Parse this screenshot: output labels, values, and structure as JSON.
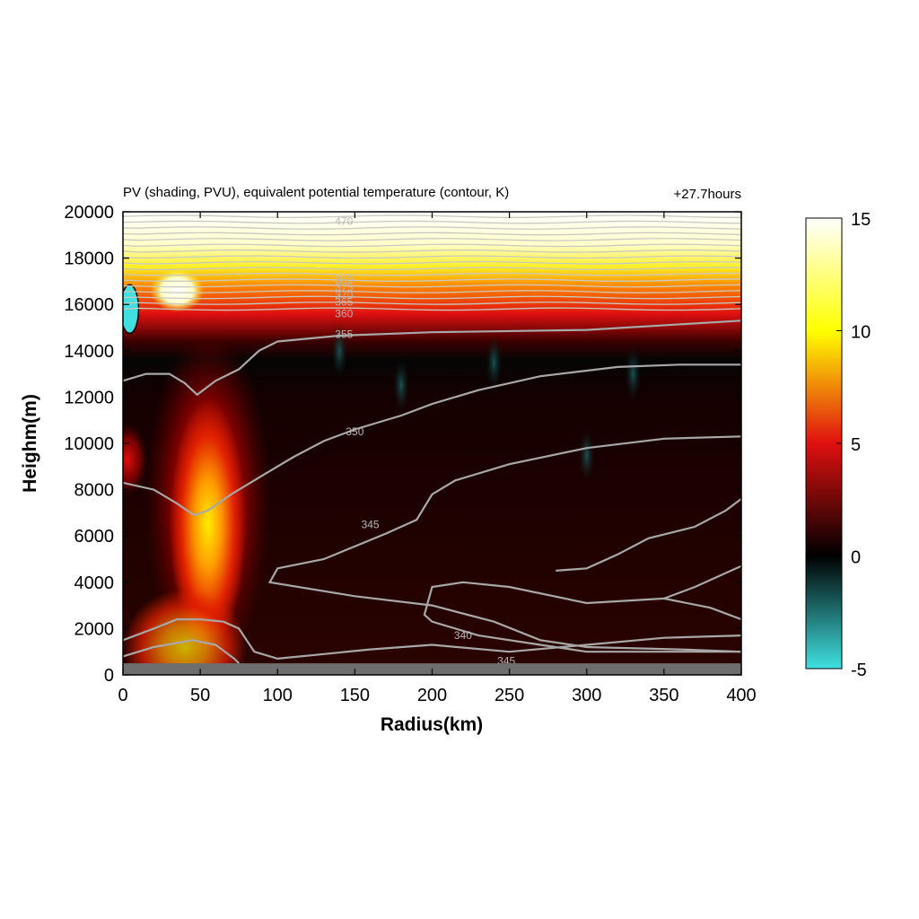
{
  "chart_data": {
    "type": "heatmap",
    "title": "PV (shading, PVU), equivalent potential temperature (contour, K)",
    "time_label": "+27.7hours",
    "xlabel": "Radius(km)",
    "ylabel": "Heighm(m)",
    "xlim": [
      0,
      400
    ],
    "ylim": [
      0,
      20000
    ],
    "x_ticks": [
      0,
      50,
      100,
      150,
      200,
      250,
      300,
      350,
      400
    ],
    "y_ticks": [
      0,
      2000,
      4000,
      6000,
      8000,
      10000,
      12000,
      14000,
      16000,
      18000,
      20000
    ],
    "colorbar": {
      "min": -5,
      "max": 15,
      "ticks": [
        -5,
        0,
        5,
        10,
        15
      ],
      "colors": [
        "#40e0e0",
        "#000000",
        "#e01010",
        "#ffff00",
        "#ffffff"
      ]
    },
    "shading_features": [
      {
        "kind": "positive-column",
        "x_center": 55,
        "width": 45,
        "y_bottom": 0,
        "y_top": 15000,
        "peak_height": 6500,
        "peak_pv": 10
      },
      {
        "kind": "positive-band",
        "x_from": 0,
        "x_to": 400,
        "y_bottom": 15500,
        "y_top": 18000,
        "peak_pv": 12
      },
      {
        "kind": "stratosphere",
        "x_from": 0,
        "x_to": 400,
        "y_bottom": 18000,
        "y_top": 20000,
        "pv": 15
      },
      {
        "kind": "negative-patch",
        "x_center": 2,
        "y_center": 15800,
        "pv": -5
      },
      {
        "kind": "near-surface-positive",
        "x_from": 0,
        "x_to": 80,
        "y_bottom": 0,
        "y_top": 2500,
        "peak_pv": 8
      },
      {
        "kind": "below-ground",
        "x_from": 0,
        "x_to": 400,
        "y_bottom": 0,
        "y_top": 500
      }
    ],
    "contour_labels": [
      {
        "text": "355",
        "x": 143,
        "y": 14700
      },
      {
        "text": "350",
        "x": 150,
        "y": 10500
      },
      {
        "text": "345",
        "x": 160,
        "y": 6500
      },
      {
        "text": "340",
        "x": 220,
        "y": 1700
      },
      {
        "text": "345",
        "x": 248,
        "y": 600
      },
      {
        "text": "360",
        "x": 143,
        "y": 15600
      },
      {
        "text": "365",
        "x": 143,
        "y": 16100
      },
      {
        "text": "370",
        "x": 143,
        "y": 16400
      },
      {
        "text": "375",
        "x": 143,
        "y": 16750
      },
      {
        "text": "380",
        "x": 143,
        "y": 17050
      },
      {
        "text": "470",
        "x": 143,
        "y": 19600
      }
    ],
    "contours": [
      {
        "level": 355,
        "points": [
          [
            0,
            12700
          ],
          [
            15,
            13000
          ],
          [
            30,
            13000
          ],
          [
            40,
            12600
          ],
          [
            48,
            12100
          ],
          [
            60,
            12700
          ],
          [
            75,
            13200
          ],
          [
            88,
            14000
          ],
          [
            100,
            14400
          ],
          [
            140,
            14650
          ],
          [
            200,
            14800
          ],
          [
            300,
            14900
          ],
          [
            400,
            15300
          ]
        ]
      },
      {
        "level": 350,
        "points": [
          [
            0,
            8300
          ],
          [
            20,
            8000
          ],
          [
            35,
            7400
          ],
          [
            46,
            6900
          ],
          [
            55,
            7100
          ],
          [
            70,
            7800
          ],
          [
            90,
            8600
          ],
          [
            110,
            9400
          ],
          [
            130,
            10100
          ],
          [
            150,
            10600
          ],
          [
            180,
            11200
          ],
          [
            200,
            11700
          ],
          [
            230,
            12300
          ],
          [
            270,
            12900
          ],
          [
            320,
            13300
          ],
          [
            360,
            13400
          ],
          [
            400,
            13400
          ]
        ]
      },
      {
        "level": 345,
        "points": [
          [
            0,
            1500
          ],
          [
            20,
            2000
          ],
          [
            35,
            2400
          ],
          [
            50,
            2400
          ],
          [
            65,
            2300
          ],
          [
            75,
            2000
          ],
          [
            85,
            1000
          ],
          [
            100,
            700
          ],
          [
            130,
            900
          ],
          [
            160,
            1100
          ],
          [
            200,
            1300
          ],
          [
            250,
            1000
          ],
          [
            300,
            1300
          ],
          [
            350,
            1600
          ],
          [
            400,
            1700
          ]
        ]
      },
      {
        "level": 345,
        "points": [
          [
            0,
            800
          ],
          [
            20,
            1200
          ],
          [
            45,
            1500
          ],
          [
            60,
            1300
          ],
          [
            72,
            700
          ],
          [
            75,
            500
          ]
        ]
      },
      {
        "level": 345,
        "points": [
          [
            400,
            10300
          ],
          [
            350,
            10200
          ],
          [
            300,
            9800
          ],
          [
            250,
            9100
          ],
          [
            215,
            8400
          ],
          [
            200,
            7800
          ],
          [
            190,
            6700
          ],
          [
            170,
            6100
          ],
          [
            130,
            5000
          ],
          [
            100,
            4600
          ],
          [
            95,
            4000
          ],
          [
            150,
            3400
          ],
          [
            200,
            3000
          ],
          [
            240,
            2300
          ],
          [
            270,
            1500
          ],
          [
            300,
            1200
          ],
          [
            360,
            1100
          ],
          [
            400,
            1000
          ]
        ]
      },
      {
        "level": 340,
        "points": [
          [
            400,
            2400
          ],
          [
            380,
            2900
          ],
          [
            350,
            3300
          ],
          [
            300,
            3100
          ],
          [
            250,
            3800
          ],
          [
            220,
            4000
          ],
          [
            200,
            3800
          ],
          [
            195,
            2600
          ],
          [
            200,
            2300
          ],
          [
            230,
            1700
          ],
          [
            270,
            1300
          ],
          [
            300,
            1000
          ],
          [
            400,
            1000
          ]
        ]
      },
      {
        "level": 340,
        "points": [
          [
            350,
            3300
          ],
          [
            370,
            3800
          ],
          [
            400,
            4700
          ]
        ]
      },
      {
        "level": 345,
        "points": [
          [
            400,
            7600
          ],
          [
            390,
            7100
          ],
          [
            370,
            6400
          ],
          [
            340,
            5900
          ],
          [
            320,
            5200
          ],
          [
            300,
            4600
          ],
          [
            280,
            4500
          ]
        ]
      }
    ]
  }
}
